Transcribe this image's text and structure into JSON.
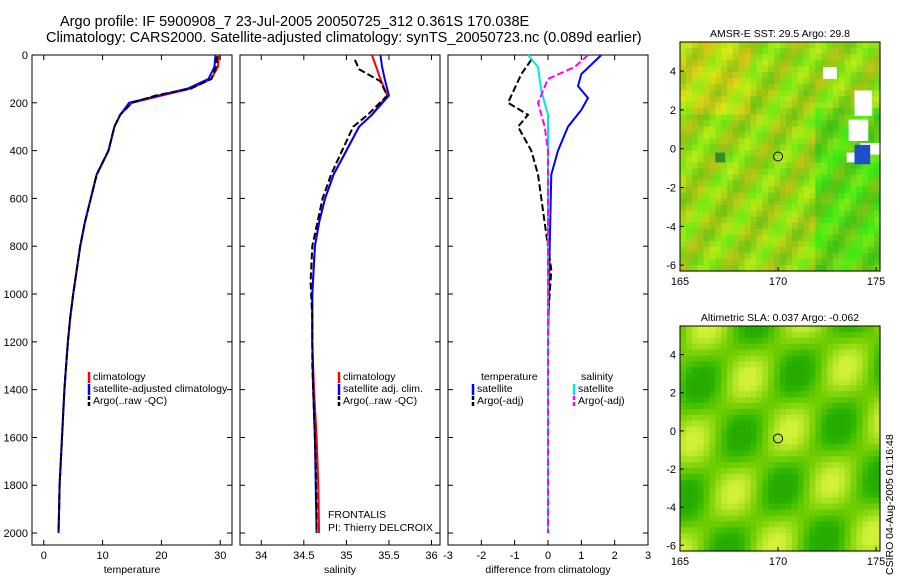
{
  "header": {
    "title_line1": "Argo profile: IF 5900908_7 23-Jul-2005 20050725_312 0.361S 170.038E",
    "title_line2": "Climatology: CARS2000. Satellite-adjusted climatology: synTS_20050723.nc (0.089d earlier)"
  },
  "footer": {
    "credit": "CSIRO 04-Aug-2005 01:16:48",
    "project": "FRONTALIS",
    "pi": "PI: Thierry DELCROIX"
  },
  "colors": {
    "climatology": "#ff0000",
    "satellite": "#0000ff",
    "argo": "#000000",
    "sal_satellite": "#00e5e5",
    "sal_argo": "#ff00ff"
  },
  "chart_data": [
    {
      "type": "line",
      "id": "temperature",
      "xlabel": "temperature",
      "ylabel": "",
      "xlim": [
        -2,
        32
      ],
      "ylim": [
        2050,
        0
      ],
      "y_inverted": true,
      "xticks": [
        0,
        10,
        20,
        30
      ],
      "yticks": [
        0,
        200,
        400,
        600,
        800,
        1000,
        1200,
        1400,
        1600,
        1800,
        2000
      ],
      "legend": [
        "climatology",
        "satellite-adjusted climatology",
        "Argo(..raw -QC)"
      ],
      "series": [
        {
          "name": "climatology",
          "color": "#ff0000",
          "dash": false,
          "points": [
            [
              29.8,
              0
            ],
            [
              29.6,
              50
            ],
            [
              28.5,
              100
            ],
            [
              25,
              140
            ],
            [
              20,
              170
            ],
            [
              15,
              200
            ],
            [
              13,
              250
            ],
            [
              12,
              300
            ],
            [
              11,
              400
            ],
            [
              9,
              500
            ],
            [
              8,
              600
            ],
            [
              7,
              700
            ],
            [
              6.2,
              800
            ],
            [
              5.6,
              900
            ],
            [
              5,
              1000
            ],
            [
              4.5,
              1100
            ],
            [
              4.1,
              1200
            ],
            [
              3.8,
              1300
            ],
            [
              3.5,
              1400
            ],
            [
              3.3,
              1500
            ],
            [
              3.1,
              1600
            ],
            [
              2.9,
              1700
            ],
            [
              2.7,
              1800
            ],
            [
              2.6,
              1900
            ],
            [
              2.5,
              2000
            ]
          ]
        },
        {
          "name": "satellite-adjusted climatology",
          "color": "#0000ff",
          "dash": false,
          "points": [
            [
              29.2,
              0
            ],
            [
              29,
              50
            ],
            [
              28,
              100
            ],
            [
              24.5,
              140
            ],
            [
              19.5,
              170
            ],
            [
              14.5,
              200
            ],
            [
              13,
              250
            ],
            [
              12,
              300
            ],
            [
              11,
              400
            ],
            [
              9,
              500
            ],
            [
              8,
              600
            ],
            [
              7,
              700
            ],
            [
              6.2,
              800
            ],
            [
              5.6,
              900
            ],
            [
              5,
              1000
            ],
            [
              4.5,
              1100
            ],
            [
              4.1,
              1200
            ],
            [
              3.8,
              1300
            ],
            [
              3.5,
              1400
            ],
            [
              3.3,
              1500
            ],
            [
              3.1,
              1600
            ],
            [
              2.9,
              1700
            ],
            [
              2.7,
              1800
            ],
            [
              2.6,
              1900
            ],
            [
              2.5,
              2000
            ]
          ]
        },
        {
          "name": "Argo(..raw -QC)",
          "color": "#000000",
          "dash": true,
          "points": [
            [
              29.5,
              5
            ],
            [
              29.3,
              50
            ],
            [
              28.5,
              100
            ],
            [
              25,
              140
            ],
            [
              19,
              170
            ],
            [
              15,
              200
            ],
            [
              13,
              250
            ],
            [
              12,
              300
            ],
            [
              11,
              400
            ],
            [
              9,
              500
            ],
            [
              8,
              600
            ],
            [
              7,
              700
            ],
            [
              6.2,
              800
            ],
            [
              5.6,
              900
            ],
            [
              5,
              1000
            ],
            [
              4.5,
              1100
            ],
            [
              4.1,
              1200
            ],
            [
              3.8,
              1300
            ],
            [
              3.5,
              1400
            ],
            [
              3.3,
              1500
            ],
            [
              3.1,
              1600
            ],
            [
              2.9,
              1700
            ],
            [
              2.7,
              1800
            ],
            [
              2.6,
              1900
            ],
            [
              2.5,
              2000
            ]
          ]
        }
      ]
    },
    {
      "type": "line",
      "id": "salinity",
      "xlabel": "salinity",
      "ylabel": "",
      "xlim": [
        33.75,
        36.1
      ],
      "ylim": [
        2050,
        0
      ],
      "y_inverted": true,
      "xticks": [
        34,
        34.5,
        35,
        35.5,
        36
      ],
      "yticks": [],
      "legend": [
        "climatology",
        "satellite adj. clim.",
        "Argo(..raw -QC)"
      ],
      "series": [
        {
          "name": "climatology",
          "color": "#ff0000",
          "dash": false,
          "points": [
            [
              35.3,
              0
            ],
            [
              35.35,
              50
            ],
            [
              35.4,
              100
            ],
            [
              35.48,
              170
            ],
            [
              35.3,
              250
            ],
            [
              35.15,
              300
            ],
            [
              35,
              400
            ],
            [
              34.85,
              500
            ],
            [
              34.75,
              600
            ],
            [
              34.68,
              700
            ],
            [
              34.63,
              800
            ],
            [
              34.6,
              1000
            ],
            [
              34.6,
              1200
            ],
            [
              34.62,
              1400
            ],
            [
              34.65,
              1600
            ],
            [
              34.67,
              1800
            ],
            [
              34.68,
              2000
            ]
          ]
        },
        {
          "name": "satellite adj. clim.",
          "color": "#0000ff",
          "dash": false,
          "points": [
            [
              35.4,
              0
            ],
            [
              35.42,
              50
            ],
            [
              35.45,
              100
            ],
            [
              35.5,
              170
            ],
            [
              35.3,
              250
            ],
            [
              35.15,
              300
            ],
            [
              35,
              400
            ],
            [
              34.85,
              500
            ],
            [
              34.75,
              600
            ],
            [
              34.68,
              700
            ],
            [
              34.63,
              800
            ],
            [
              34.6,
              1000
            ],
            [
              34.6,
              1200
            ],
            [
              34.61,
              1400
            ],
            [
              34.63,
              1600
            ],
            [
              34.64,
              1800
            ],
            [
              34.65,
              2000
            ]
          ]
        },
        {
          "name": "Argo(..raw -QC)",
          "color": "#000000",
          "dash": true,
          "points": [
            [
              35.1,
              20
            ],
            [
              35.15,
              60
            ],
            [
              35.4,
              110
            ],
            [
              35.48,
              170
            ],
            [
              35.25,
              250
            ],
            [
              35.08,
              300
            ],
            [
              34.95,
              400
            ],
            [
              34.82,
              500
            ],
            [
              34.72,
              600
            ],
            [
              34.66,
              700
            ],
            [
              34.6,
              800
            ],
            [
              34.58,
              950
            ],
            [
              34.6,
              1100
            ],
            [
              34.6,
              1300
            ],
            [
              34.62,
              1500
            ],
            [
              34.64,
              1700
            ],
            [
              34.65,
              1900
            ],
            [
              34.65,
              2000
            ]
          ]
        }
      ]
    },
    {
      "type": "line",
      "id": "difference",
      "xlabel": "difference from climatology",
      "ylabel": "",
      "xlim": [
        -3,
        3
      ],
      "ylim": [
        2050,
        0
      ],
      "y_inverted": true,
      "xticks": [
        -3,
        -2,
        -1,
        0,
        1,
        2,
        3
      ],
      "yticks": [],
      "legend_left": [
        "temperature",
        "satellite",
        "Argo(-adj)"
      ],
      "legend_right": [
        "salinity",
        "satellite",
        "Argo(-adj)"
      ],
      "series": [
        {
          "name": "temperature satellite",
          "color": "#0000ff",
          "dash": false,
          "points": [
            [
              1.6,
              0
            ],
            [
              1.3,
              40
            ],
            [
              1,
              80
            ],
            [
              0.9,
              130
            ],
            [
              1.2,
              180
            ],
            [
              1.0,
              230
            ],
            [
              0.6,
              300
            ],
            [
              0.3,
              400
            ],
            [
              0.1,
              500
            ],
            [
              0.05,
              800
            ],
            [
              0,
              1200
            ],
            [
              0,
              2000
            ]
          ]
        },
        {
          "name": "temperature Argo(-adj)",
          "color": "#000000",
          "dash": true,
          "points": [
            [
              -0.5,
              20
            ],
            [
              -0.8,
              80
            ],
            [
              -1.2,
              200
            ],
            [
              -0.6,
              250
            ],
            [
              -0.9,
              300
            ],
            [
              -0.5,
              400
            ],
            [
              -0.3,
              500
            ],
            [
              -0.2,
              600
            ],
            [
              0.1,
              900
            ],
            [
              0,
              1100
            ],
            [
              0,
              1500
            ],
            [
              0,
              2000
            ]
          ]
        },
        {
          "name": "salinity satellite",
          "color": "#00e5e5",
          "dash": false,
          "points": [
            [
              -0.6,
              0
            ],
            [
              -0.3,
              50
            ],
            [
              -0.2,
              150
            ],
            [
              0,
              250
            ],
            [
              0,
              400
            ],
            [
              0,
              1000
            ],
            [
              0,
              2000
            ]
          ]
        },
        {
          "name": "salinity Argo(-adj)",
          "color": "#ff00ff",
          "dash": true,
          "points": [
            [
              1.2,
              0
            ],
            [
              0.8,
              50
            ],
            [
              0,
              100
            ],
            [
              -0.3,
              200
            ],
            [
              -0.1,
              300
            ],
            [
              0,
              400
            ],
            [
              0,
              2000
            ]
          ]
        }
      ]
    },
    {
      "type": "heatmap",
      "id": "sst-map",
      "title": "AMSR-E SST: 29.5 Argo: 29.8",
      "xlim": [
        165,
        175.2
      ],
      "ylim": [
        -6.3,
        5.5
      ],
      "xticks": [
        165,
        170,
        175
      ],
      "yticks": [
        4,
        2,
        0,
        -2,
        -4,
        -6
      ],
      "argo_position": [
        170,
        -0.4
      ]
    },
    {
      "type": "heatmap",
      "id": "sla-map",
      "title": "Altimetric SLA: 0.037 Argo: -0.062",
      "xlim": [
        165,
        175.2
      ],
      "ylim": [
        -6.3,
        5.5
      ],
      "xticks": [
        165,
        170,
        175
      ],
      "yticks": [
        4,
        2,
        0,
        -2,
        -4,
        -6
      ],
      "argo_position": [
        170,
        -0.4
      ]
    }
  ]
}
